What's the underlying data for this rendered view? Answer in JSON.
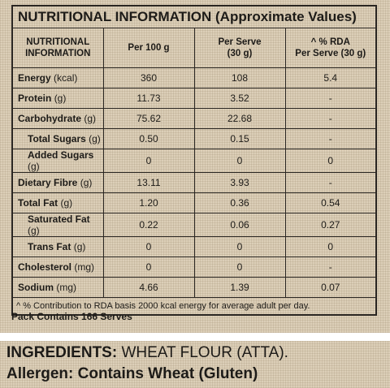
{
  "nutrition": {
    "title": "NUTRITIONAL INFORMATION (Approximate Values)",
    "headers": [
      "NUTRITIONAL\nINFORMATION",
      "Per 100 g",
      "Per Serve\n(30 g)",
      "^ % RDA\nPer Serve (30 g)"
    ],
    "rows": [
      {
        "name": "Energy",
        "unit": "(kcal)",
        "per_100g": "360",
        "per_serve": "108",
        "rda": "5.4"
      },
      {
        "name": "Protein",
        "unit": "(g)",
        "per_100g": "11.73",
        "per_serve": "3.52",
        "rda": "-"
      },
      {
        "name": "Carbohydrate",
        "unit": "(g)",
        "per_100g": "75.62",
        "per_serve": "22.68",
        "rda": "-"
      },
      {
        "name": "Total Sugars",
        "unit": "(g)",
        "per_100g": "0.50",
        "per_serve": "0.15",
        "rda": "-"
      },
      {
        "name": "Added Sugars",
        "unit": "(g)",
        "per_100g": "0",
        "per_serve": "0",
        "rda": "0"
      },
      {
        "name": "Dietary Fibre",
        "unit": "(g)",
        "per_100g": "13.11",
        "per_serve": "3.93",
        "rda": "-"
      },
      {
        "name": "Total Fat",
        "unit": "(g)",
        "per_100g": "1.20",
        "per_serve": "0.36",
        "rda": "0.54"
      },
      {
        "name": "Saturated Fat",
        "unit": "(g)",
        "per_100g": "0.22",
        "per_serve": "0.06",
        "rda": "0.27"
      },
      {
        "name": "Trans Fat",
        "unit": "(g)",
        "per_100g": "0",
        "per_serve": "0",
        "rda": "0"
      },
      {
        "name": "Cholesterol",
        "unit": "(mg)",
        "per_100g": "0",
        "per_serve": "0",
        "rda": "-"
      },
      {
        "name": "Sodium",
        "unit": "(mg)",
        "per_100g": "4.66",
        "per_serve": "1.39",
        "rda": "0.07"
      }
    ],
    "footnote": "^ % Contribution to RDA basis 2000 kcal energy for average adult per day.",
    "pack_note": "Pack Contains 166 Serves"
  },
  "ingredients": {
    "label": "INGREDIENTS:",
    "text": "WHEAT FLOUR (ATTA).",
    "allergen": "Allergen: Contains Wheat (Gluten)"
  }
}
